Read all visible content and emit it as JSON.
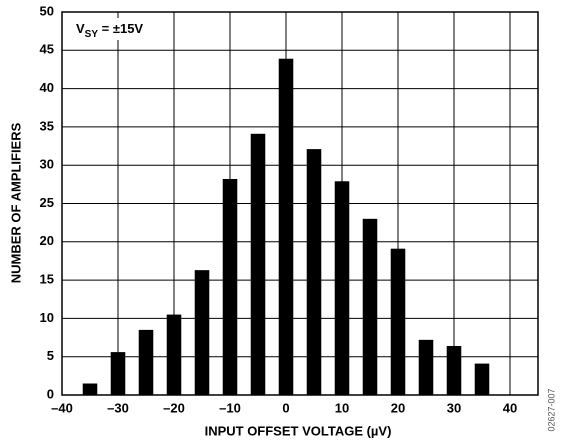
{
  "chart_data": {
    "type": "bar",
    "annotation": [
      "V",
      "SY",
      " = ±15V"
    ],
    "x_label": "INPUT OFFSET VOLTAGE (µV)",
    "y_label": "NUMBER OF AMPLIFIERS",
    "side_note": "02627-007",
    "x": [
      -35,
      -30,
      -25,
      -20,
      -15,
      -10,
      -5,
      0,
      5,
      10,
      15,
      20,
      25,
      30,
      35
    ],
    "values": [
      1.5,
      5.6,
      8.5,
      10.5,
      16.3,
      28.2,
      34.1,
      43.9,
      32.1,
      27.9,
      23,
      19.1,
      7.2,
      6.4,
      4.1
    ],
    "color": "#000000",
    "xlim": [
      -40,
      45
    ],
    "xticks": [
      {
        "value": -40,
        "label": "–40"
      },
      {
        "value": -30,
        "label": "–30"
      },
      {
        "value": -20,
        "label": "–20"
      },
      {
        "value": -10,
        "label": "–10"
      },
      0,
      10,
      20,
      30,
      40
    ],
    "ylim": [
      0,
      50
    ],
    "yticks": [
      0,
      5,
      10,
      15,
      20,
      25,
      30,
      35,
      40,
      45,
      50
    ],
    "grid": true
  }
}
